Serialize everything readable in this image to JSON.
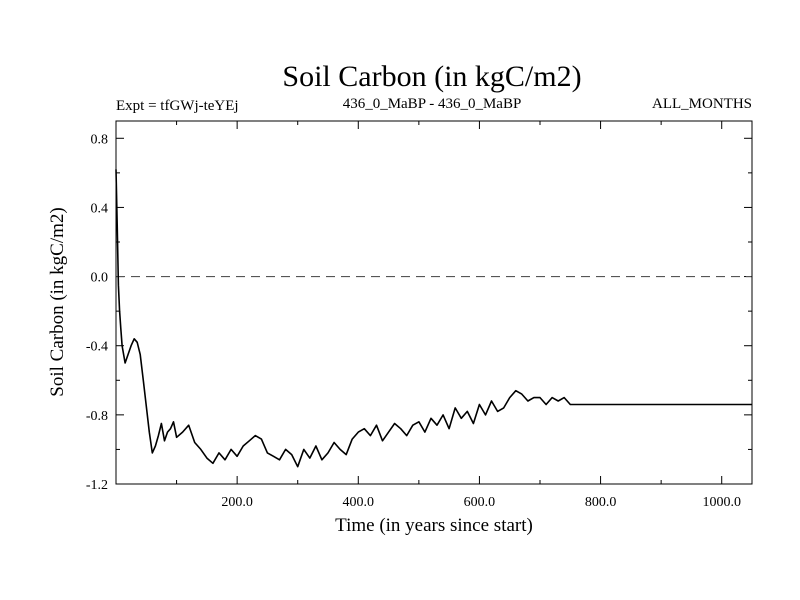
{
  "chart_data": {
    "type": "line",
    "title": "Soil Carbon (in kgC/m2)",
    "subtitle_left": "Expt = tfGWj-teYEj",
    "subtitle_center": "436_0_MaBP - 436_0_MaBP",
    "subtitle_right": "ALL_MONTHS",
    "xlabel": "Time (in years since start)",
    "ylabel": "Soil Carbon (in kgC/m2)",
    "xlim": [
      0,
      1050
    ],
    "ylim": [
      -1.2,
      0.9
    ],
    "x_ticks": [
      200,
      400,
      600,
      800,
      1000
    ],
    "x_tick_labels": [
      "200.0",
      "400.0",
      "600.0",
      "800.0",
      "1000.0"
    ],
    "y_ticks": [
      0.8,
      0.4,
      0.0,
      -0.4,
      -0.8,
      -1.2
    ],
    "y_tick_labels": [
      "0.8",
      "0.4",
      "0.0",
      "-0.4",
      "-0.8",
      "-1.2"
    ],
    "reference_line": {
      "y": 0.0,
      "style": "dashed"
    },
    "series": [
      {
        "name": "Soil Carbon",
        "x": [
          0,
          2,
          4,
          6,
          8,
          10,
          15,
          20,
          25,
          30,
          35,
          40,
          45,
          50,
          55,
          60,
          65,
          70,
          75,
          80,
          85,
          90,
          95,
          100,
          110,
          120,
          130,
          140,
          150,
          160,
          170,
          180,
          190,
          200,
          210,
          220,
          230,
          240,
          250,
          260,
          270,
          280,
          290,
          300,
          310,
          320,
          330,
          340,
          350,
          360,
          370,
          380,
          390,
          400,
          410,
          420,
          430,
          440,
          450,
          460,
          470,
          480,
          490,
          500,
          510,
          520,
          530,
          540,
          550,
          560,
          570,
          580,
          590,
          600,
          610,
          620,
          630,
          640,
          650,
          660,
          670,
          680,
          690,
          700,
          710,
          720,
          730,
          740,
          750,
          1050
        ],
        "values": [
          0.62,
          0.3,
          -0.05,
          -0.2,
          -0.3,
          -0.4,
          -0.5,
          -0.45,
          -0.4,
          -0.36,
          -0.38,
          -0.45,
          -0.6,
          -0.75,
          -0.9,
          -1.02,
          -0.98,
          -0.92,
          -0.85,
          -0.95,
          -0.9,
          -0.88,
          -0.84,
          -0.93,
          -0.9,
          -0.86,
          -0.96,
          -1.0,
          -1.05,
          -1.08,
          -1.02,
          -1.06,
          -1.0,
          -1.04,
          -0.98,
          -0.95,
          -0.92,
          -0.94,
          -1.02,
          -1.04,
          -1.06,
          -1.0,
          -1.03,
          -1.1,
          -1.0,
          -1.05,
          -0.98,
          -1.06,
          -1.02,
          -0.96,
          -1.0,
          -1.03,
          -0.94,
          -0.9,
          -0.88,
          -0.92,
          -0.86,
          -0.95,
          -0.9,
          -0.85,
          -0.88,
          -0.92,
          -0.86,
          -0.84,
          -0.9,
          -0.82,
          -0.86,
          -0.8,
          -0.88,
          -0.76,
          -0.82,
          -0.78,
          -0.85,
          -0.74,
          -0.8,
          -0.72,
          -0.78,
          -0.76,
          -0.7,
          -0.66,
          -0.68,
          -0.72,
          -0.7,
          -0.7,
          -0.74,
          -0.7,
          -0.72,
          -0.7,
          -0.74,
          -0.74
        ]
      }
    ]
  }
}
